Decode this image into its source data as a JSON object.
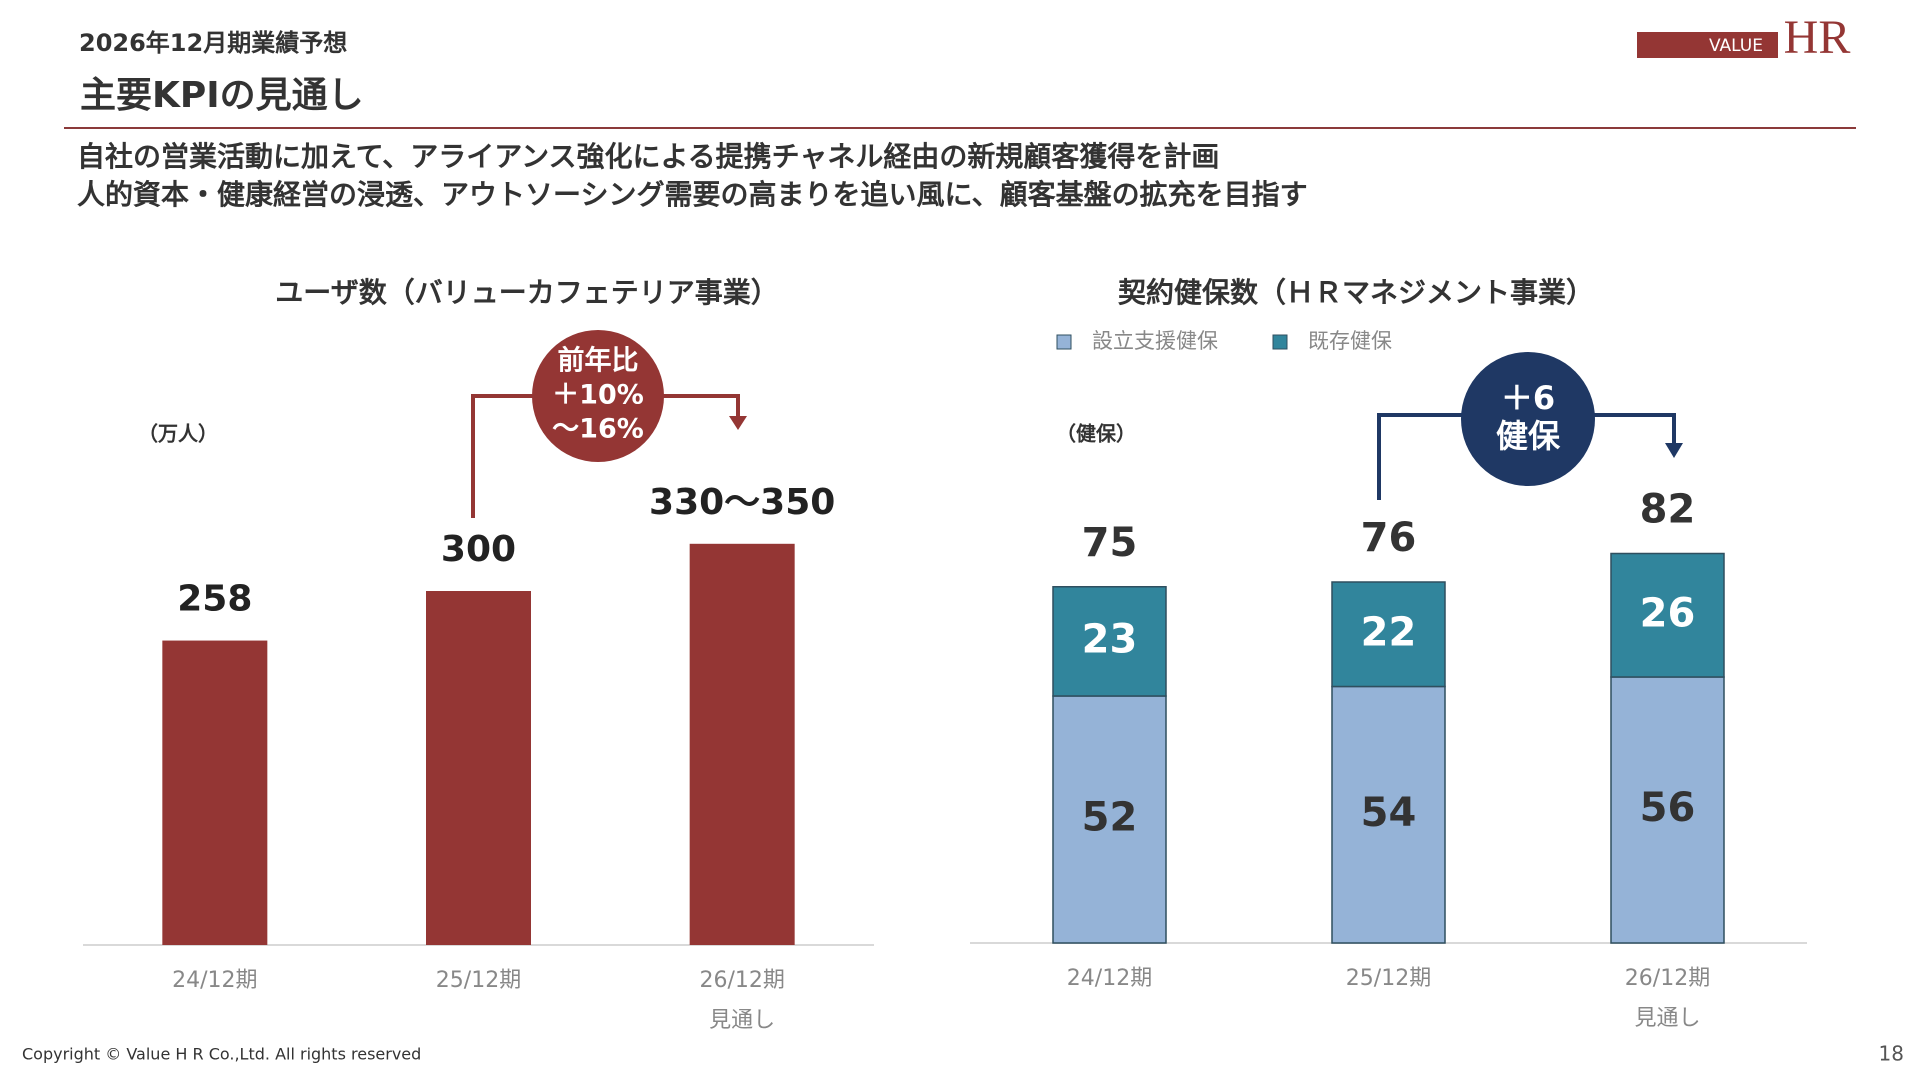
{
  "header": {
    "subtitle": "2026年12月期業績予想",
    "title": "主要KPIの見通し",
    "lead": [
      "自社の営業活動に加えて、アライアンス強化による提携チャネル経由の新規顧客獲得を計画",
      "人的資本・健康経営の浸透、アウトソーシング需要の高まりを追い風に、顧客基盤の拡充を目指す"
    ]
  },
  "logo": {
    "small": "VALUE",
    "large": "HR"
  },
  "footer": {
    "copyright": "Copyright © Value H R Co.,Ltd. All rights reserved",
    "page": "18"
  },
  "chart_data": [
    {
      "type": "bar",
      "title": "ユーザ数（バリューカフェテリア事業）",
      "unit_label": "（万人）",
      "categories": [
        "24/12期",
        "25/12期",
        "26/12期"
      ],
      "category_notes": [
        null,
        null,
        "見通し"
      ],
      "values": [
        258,
        300,
        330
      ],
      "values_high": [
        258,
        300,
        350
      ],
      "value_labels": [
        "258",
        "300",
        "330〜350"
      ],
      "color": "#943634",
      "ylim": [
        0,
        400
      ],
      "annotation": [
        "前年比",
        "＋10%",
        "〜16%"
      ],
      "annotation_color": "#943634"
    },
    {
      "type": "stacked_bar",
      "title": "契約健保数（ＨＲマネジメント事業）",
      "unit_label": "（健保）",
      "categories": [
        "24/12期",
        "25/12期",
        "26/12期"
      ],
      "category_notes": [
        null,
        null,
        "見通し"
      ],
      "series": [
        {
          "name": "設立支援健保",
          "color": "#95b3d7",
          "label_color": "#333333",
          "values": [
            52,
            54,
            56
          ]
        },
        {
          "name": "既存健保",
          "color": "#31859c",
          "label_color": "#ffffff",
          "values": [
            23,
            22,
            26
          ]
        }
      ],
      "totals": [
        75,
        76,
        82
      ],
      "ylim": [
        0,
        100
      ],
      "annotation": [
        "＋6",
        "健保"
      ],
      "annotation_color": "#1f3864"
    }
  ]
}
